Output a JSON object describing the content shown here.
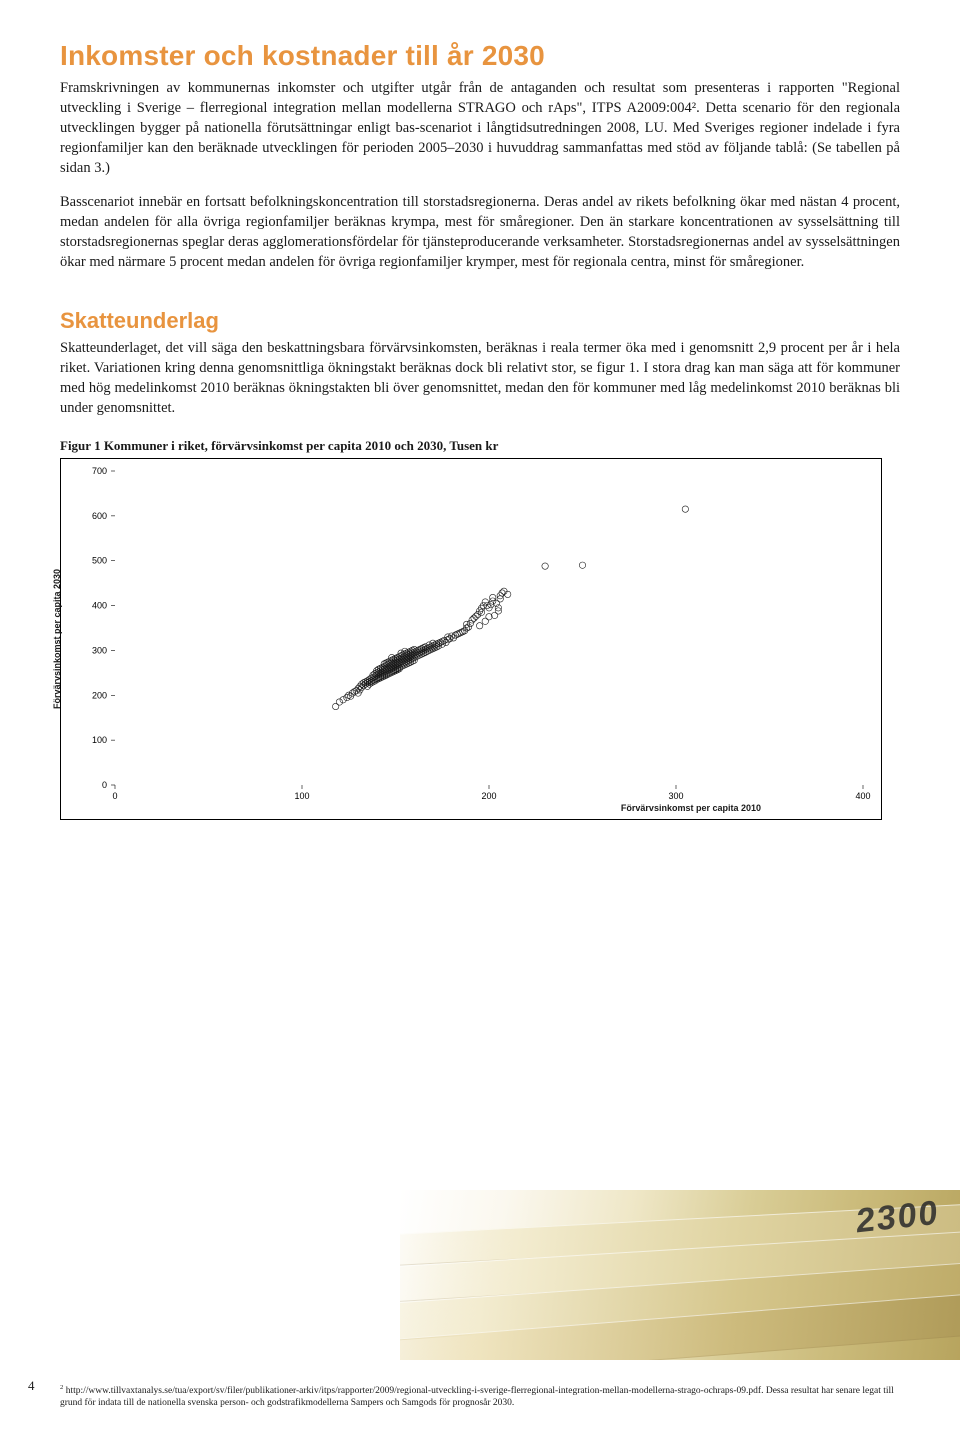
{
  "headings": {
    "main": "Inkomster och kostnader till år 2030",
    "skatt": "Skatteunderlag"
  },
  "paragraphs": {
    "p1": "Framskrivningen av kommunernas inkomster och utgifter utgår från de antaganden och resultat som presenteras i rapporten \"Regional utveckling i Sverige – flerregional integration mellan modellerna STRAGO och rAps\", ITPS A2009:004². Detta scenario för den regionala utvecklingen bygger på nationella förutsättningar enligt bas-scenariot i långtidsutredningen 2008, LU. Med Sveriges regioner indelade i fyra regionfamiljer kan den beräknade utvecklingen för perioden 2005–2030 i huvuddrag sammanfattas med stöd av följande tablå: (Se tabellen på sidan 3.)",
    "p2": "Basscenariot innebär en fortsatt befolkningskoncentration till storstadsregionerna. Deras andel av rikets befolkning ökar med nästan 4 procent, medan andelen för alla övriga regionfamiljer beräknas krympa, mest för småregioner. Den än starkare koncentrationen av sysselsättning till storstadsregionernas speglar deras agglomerationsfördelar för tjänsteproducerande verksamheter. Storstadsregionernas andel av sysselsättningen ökar med närmare 5 procent medan andelen för övriga regionfamiljer krymper, mest för regionala centra, minst för småregioner.",
    "p3": "Skatteunderlaget, det vill säga den beskattningsbara förvärvsinkomsten, beräknas i reala termer öka med i genomsnitt 2,9 procent per år i hela riket. Variationen kring denna genomsnittliga ökningstakt beräknas dock bli relativt stor, se figur 1. I stora drag kan man säga att för kommuner med hög medelinkomst 2010 beräknas ökningstakten bli över genomsnittet, medan den för kommuner med låg medelinkomst 2010 beräknas bli under genomsnittet."
  },
  "chart": {
    "title": "Figur 1 Kommuner i riket, förvärvsinkomst per capita 2010 och 2030, Tusen kr",
    "type": "scatter",
    "xlabel": "Förvärvsinkomst per capita 2010",
    "ylabel": "Förvärvsinkomst per capita 2030",
    "xlim": [
      0,
      400
    ],
    "ylim": [
      0,
      700
    ],
    "xtick_step": 100,
    "ytick_step": 100,
    "background_color": "#ffffff",
    "grid": false,
    "marker": {
      "shape": "circle-open",
      "size": 3.2,
      "stroke": "#1a1a1a",
      "stroke_width": 0.6,
      "fill": "none"
    },
    "label_font": {
      "family": "Arial",
      "weight": "bold",
      "size_pt": 7
    },
    "tick_font": {
      "family": "Arial",
      "weight": "normal",
      "size_pt": 7
    },
    "points": [
      [
        118,
        175
      ],
      [
        120,
        185
      ],
      [
        122,
        190
      ],
      [
        124,
        195
      ],
      [
        125,
        200
      ],
      [
        126,
        198
      ],
      [
        127,
        205
      ],
      [
        128,
        208
      ],
      [
        129,
        210
      ],
      [
        130,
        205
      ],
      [
        130,
        215
      ],
      [
        131,
        212
      ],
      [
        131,
        220
      ],
      [
        132,
        218
      ],
      [
        132,
        225
      ],
      [
        133,
        222
      ],
      [
        133,
        228
      ],
      [
        134,
        225
      ],
      [
        134,
        230
      ],
      [
        135,
        228
      ],
      [
        135,
        232
      ],
      [
        135,
        220
      ],
      [
        136,
        230
      ],
      [
        136,
        235
      ],
      [
        136,
        225
      ],
      [
        137,
        232
      ],
      [
        137,
        238
      ],
      [
        137,
        228
      ],
      [
        138,
        234
      ],
      [
        138,
        240
      ],
      [
        138,
        245
      ],
      [
        138,
        230
      ],
      [
        139,
        236
      ],
      [
        139,
        242
      ],
      [
        139,
        248
      ],
      [
        139,
        232
      ],
      [
        140,
        238
      ],
      [
        140,
        245
      ],
      [
        140,
        250
      ],
      [
        140,
        255
      ],
      [
        140,
        235
      ],
      [
        141,
        240
      ],
      [
        141,
        246
      ],
      [
        141,
        252
      ],
      [
        141,
        258
      ],
      [
        141,
        237
      ],
      [
        142,
        242
      ],
      [
        142,
        248
      ],
      [
        142,
        254
      ],
      [
        142,
        260
      ],
      [
        142,
        239
      ],
      [
        143,
        244
      ],
      [
        143,
        250
      ],
      [
        143,
        256
      ],
      [
        143,
        262
      ],
      [
        143,
        241
      ],
      [
        144,
        246
      ],
      [
        144,
        252
      ],
      [
        144,
        258
      ],
      [
        144,
        264
      ],
      [
        144,
        270
      ],
      [
        144,
        243
      ],
      [
        145,
        248
      ],
      [
        145,
        254
      ],
      [
        145,
        260
      ],
      [
        145,
        266
      ],
      [
        145,
        272
      ],
      [
        145,
        245
      ],
      [
        146,
        250
      ],
      [
        146,
        256
      ],
      [
        146,
        262
      ],
      [
        146,
        268
      ],
      [
        146,
        274
      ],
      [
        146,
        247
      ],
      [
        147,
        252
      ],
      [
        147,
        258
      ],
      [
        147,
        264
      ],
      [
        147,
        270
      ],
      [
        147,
        276
      ],
      [
        147,
        249
      ],
      [
        148,
        254
      ],
      [
        148,
        260
      ],
      [
        148,
        266
      ],
      [
        148,
        272
      ],
      [
        148,
        278
      ],
      [
        148,
        284
      ],
      [
        148,
        251
      ],
      [
        149,
        256
      ],
      [
        149,
        262
      ],
      [
        149,
        268
      ],
      [
        149,
        274
      ],
      [
        149,
        280
      ],
      [
        149,
        253
      ],
      [
        150,
        258
      ],
      [
        150,
        264
      ],
      [
        150,
        270
      ],
      [
        150,
        276
      ],
      [
        150,
        282
      ],
      [
        150,
        255
      ],
      [
        151,
        260
      ],
      [
        151,
        266
      ],
      [
        151,
        272
      ],
      [
        151,
        278
      ],
      [
        151,
        284
      ],
      [
        151,
        257
      ],
      [
        152,
        262
      ],
      [
        152,
        268
      ],
      [
        152,
        274
      ],
      [
        152,
        280
      ],
      [
        152,
        286
      ],
      [
        152,
        259
      ],
      [
        153,
        264
      ],
      [
        153,
        270
      ],
      [
        153,
        276
      ],
      [
        153,
        282
      ],
      [
        153,
        288
      ],
      [
        153,
        294
      ],
      [
        154,
        266
      ],
      [
        154,
        272
      ],
      [
        154,
        278
      ],
      [
        154,
        284
      ],
      [
        154,
        290
      ],
      [
        155,
        268
      ],
      [
        155,
        274
      ],
      [
        155,
        280
      ],
      [
        155,
        286
      ],
      [
        155,
        292
      ],
      [
        155,
        298
      ],
      [
        156,
        270
      ],
      [
        156,
        276
      ],
      [
        156,
        282
      ],
      [
        156,
        288
      ],
      [
        156,
        294
      ],
      [
        157,
        272
      ],
      [
        157,
        278
      ],
      [
        157,
        284
      ],
      [
        157,
        290
      ],
      [
        157,
        296
      ],
      [
        158,
        274
      ],
      [
        158,
        280
      ],
      [
        158,
        286
      ],
      [
        158,
        292
      ],
      [
        158,
        298
      ],
      [
        159,
        276
      ],
      [
        159,
        282
      ],
      [
        159,
        288
      ],
      [
        159,
        294
      ],
      [
        159,
        300
      ],
      [
        160,
        278
      ],
      [
        160,
        284
      ],
      [
        160,
        290
      ],
      [
        160,
        296
      ],
      [
        160,
        302
      ],
      [
        161,
        286
      ],
      [
        161,
        292
      ],
      [
        161,
        298
      ],
      [
        162,
        288
      ],
      [
        162,
        294
      ],
      [
        162,
        300
      ],
      [
        163,
        290
      ],
      [
        163,
        296
      ],
      [
        163,
        302
      ],
      [
        164,
        292
      ],
      [
        164,
        298
      ],
      [
        164,
        304
      ],
      [
        165,
        294
      ],
      [
        165,
        300
      ],
      [
        165,
        306
      ],
      [
        166,
        296
      ],
      [
        166,
        302
      ],
      [
        166,
        308
      ],
      [
        167,
        298
      ],
      [
        167,
        304
      ],
      [
        168,
        300
      ],
      [
        168,
        306
      ],
      [
        168,
        312
      ],
      [
        169,
        302
      ],
      [
        169,
        308
      ],
      [
        170,
        304
      ],
      [
        170,
        310
      ],
      [
        170,
        316
      ],
      [
        171,
        306
      ],
      [
        171,
        312
      ],
      [
        172,
        308
      ],
      [
        172,
        314
      ],
      [
        173,
        310
      ],
      [
        173,
        316
      ],
      [
        174,
        318
      ],
      [
        175,
        314
      ],
      [
        175,
        320
      ],
      [
        176,
        322
      ],
      [
        177,
        318
      ],
      [
        178,
        324
      ],
      [
        178,
        330
      ],
      [
        179,
        326
      ],
      [
        180,
        332
      ],
      [
        181,
        328
      ],
      [
        182,
        334
      ],
      [
        183,
        336
      ],
      [
        184,
        338
      ],
      [
        185,
        340
      ],
      [
        186,
        342
      ],
      [
        187,
        344
      ],
      [
        188,
        350
      ],
      [
        188,
        358
      ],
      [
        189,
        352
      ],
      [
        190,
        360
      ],
      [
        191,
        368
      ],
      [
        192,
        372
      ],
      [
        193,
        376
      ],
      [
        194,
        380
      ],
      [
        195,
        388
      ],
      [
        196,
        394
      ],
      [
        197,
        400
      ],
      [
        198,
        408
      ],
      [
        199,
        400
      ],
      [
        200,
        395
      ],
      [
        201,
        402
      ],
      [
        202,
        410
      ],
      [
        202,
        418
      ],
      [
        204,
        405
      ],
      [
        205,
        395
      ],
      [
        206,
        415
      ],
      [
        206,
        422
      ],
      [
        207,
        428
      ],
      [
        208,
        432
      ],
      [
        210,
        425
      ],
      [
        195,
        355
      ],
      [
        198,
        365
      ],
      [
        200,
        375
      ],
      [
        196,
        385
      ],
      [
        203,
        378
      ],
      [
        205,
        388
      ],
      [
        230,
        488
      ],
      [
        250,
        490
      ],
      [
        305,
        615
      ]
    ]
  },
  "footnote_label": "2",
  "footnote_text": "http://www.tillvaxtanalys.se/tua/export/sv/filer/publikationer-arkiv/itps/rapporter/2009/regional-utveckling-i-sverige-flerregional-integration-mellan-modellerna-strago-ochraps-09.pdf. Dessa resultat har senare legat till grund för indata till de nationella svenska person- och godstrafikmodellerna Sampers och Samgods för prognosår 2030.",
  "photo_numtext": "2300",
  "page_number": "4"
}
